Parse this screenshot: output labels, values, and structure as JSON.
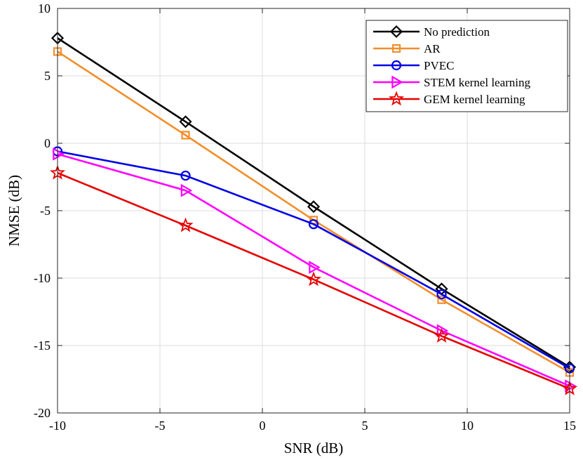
{
  "chart_data": {
    "type": "line",
    "title": "",
    "xlabel": "SNR (dB)",
    "ylabel": "NMSE (dB)",
    "xlim": [
      -10,
      15
    ],
    "ylim": [
      -20,
      10
    ],
    "xticks": [
      -10,
      -5,
      0,
      5,
      10,
      15
    ],
    "yticks": [
      10,
      5,
      0,
      -5,
      -10,
      -15,
      -20
    ],
    "grid": true,
    "legend_position": "top-right",
    "x": [
      -10,
      -3.75,
      2.5,
      8.75,
      15
    ],
    "series": [
      {
        "name": "No prediction",
        "color": "#000000",
        "marker": "diamond",
        "values": [
          7.8,
          1.6,
          -4.7,
          -10.8,
          -16.6
        ]
      },
      {
        "name": "AR",
        "color": "#F28E2B",
        "marker": "square",
        "values": [
          6.8,
          0.6,
          -5.7,
          -11.6,
          -17.0
        ]
      },
      {
        "name": "PVEC",
        "color": "#0000E6",
        "marker": "circle",
        "values": [
          -0.6,
          -2.4,
          -6.0,
          -11.2,
          -16.7
        ]
      },
      {
        "name": "STEM kernel learning",
        "color": "#FF00FF",
        "marker": "triangle-right",
        "values": [
          -0.8,
          -3.5,
          -9.2,
          -13.9,
          -18.0
        ]
      },
      {
        "name": "GEM kernel learning",
        "color": "#E60000",
        "marker": "star",
        "values": [
          -2.2,
          -6.1,
          -10.1,
          -14.3,
          -18.2
        ]
      }
    ]
  }
}
